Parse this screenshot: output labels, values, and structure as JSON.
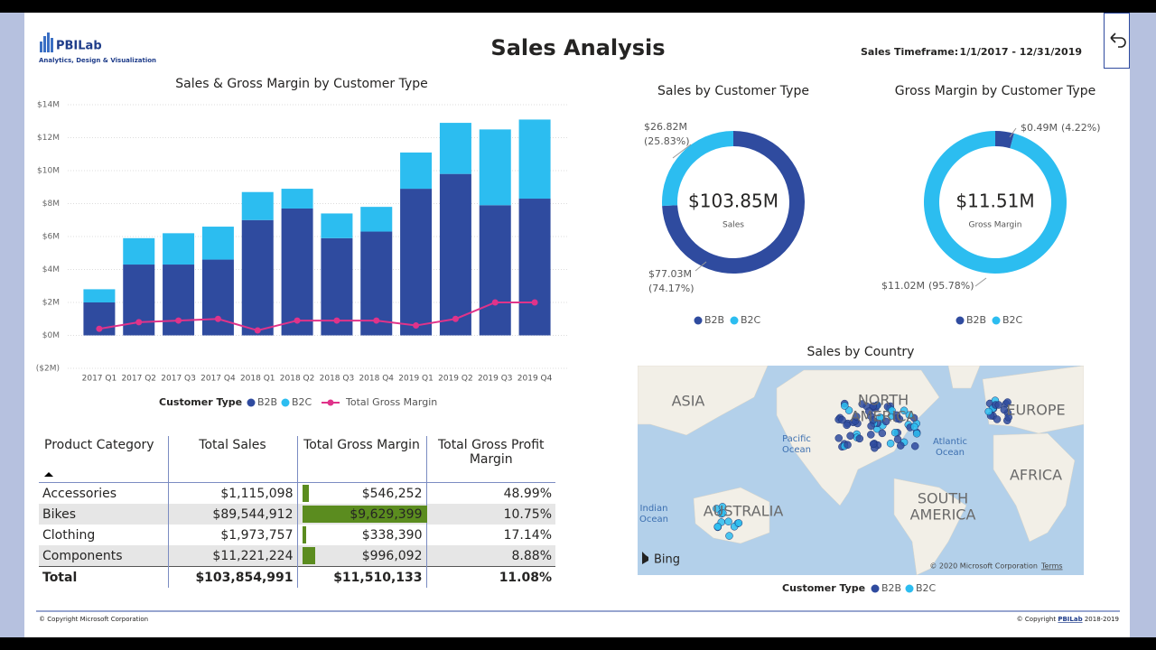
{
  "header": {
    "logo": "PBILab",
    "logo_tagline": "Analytics, Design & Visualization",
    "title": "Sales Analysis",
    "timeframe_label": "Sales Timeframe:",
    "timeframe": "1/1/2017 - 12/31/2019"
  },
  "chart_data": [
    {
      "type": "bar",
      "stacked": true,
      "title": "Sales & Gross Margin by Customer Type",
      "categories": [
        "2017 Q1",
        "2017 Q2",
        "2017 Q3",
        "2017 Q4",
        "2018 Q1",
        "2018 Q2",
        "2018 Q3",
        "2018 Q4",
        "2019 Q1",
        "2019 Q2",
        "2019 Q3",
        "2019 Q4"
      ],
      "series": [
        {
          "name": "B2B",
          "color": "#2f4b9f",
          "values": [
            2000000,
            4300000,
            4300000,
            4600000,
            7000000,
            7700000,
            5900000,
            6300000,
            8900000,
            9800000,
            7900000,
            8300000
          ]
        },
        {
          "name": "B2C",
          "color": "#2cbdf0",
          "values": [
            800000,
            1600000,
            1900000,
            2000000,
            1700000,
            1200000,
            1500000,
            1500000,
            2200000,
            3100000,
            4600000,
            4800000
          ]
        },
        {
          "name": "Total Gross Margin",
          "type": "line",
          "color": "#e0338a",
          "values": [
            400000,
            800000,
            900000,
            1000000,
            300000,
            900000,
            900000,
            900000,
            600000,
            1000000,
            2000000,
            2000000
          ]
        }
      ],
      "legend_title": "Customer Type",
      "ylim": [
        -2000000,
        14000000
      ],
      "yticks": [
        {
          "value": -2000000,
          "label": "($2M)"
        },
        {
          "value": 0,
          "label": "$0M"
        },
        {
          "value": 2000000,
          "label": "$2M"
        },
        {
          "value": 4000000,
          "label": "$4M"
        },
        {
          "value": 6000000,
          "label": "$6M"
        },
        {
          "value": 8000000,
          "label": "$8M"
        },
        {
          "value": 10000000,
          "label": "$10M"
        },
        {
          "value": 12000000,
          "label": "$12M"
        },
        {
          "value": 14000000,
          "label": "$14M"
        }
      ],
      "grid": true
    },
    {
      "type": "pie",
      "donut": true,
      "title": "Sales by Customer Type",
      "categories": [
        "B2B",
        "B2C"
      ],
      "values": [
        77030000,
        26820000
      ],
      "colors": [
        "#2f4b9f",
        "#2cbdf0"
      ],
      "value_labels": [
        "$77.03M",
        "$26.82M"
      ],
      "percent_labels": [
        "(74.17%)",
        "(25.83%)"
      ],
      "center_label": "$103.85M",
      "center_caption": "Sales"
    },
    {
      "type": "pie",
      "donut": true,
      "title": "Gross Margin by Customer Type",
      "categories": [
        "B2B",
        "B2C"
      ],
      "values": [
        490000,
        11020000
      ],
      "colors": [
        "#2f4b9f",
        "#2cbdf0"
      ],
      "value_labels": [
        "$0.49M",
        "$11.02M"
      ],
      "percent_labels": [
        "(4.22%)",
        "(95.78%)"
      ],
      "center_label": "$11.51M",
      "center_caption": "Gross Margin"
    }
  ],
  "table": {
    "columns": [
      "Product Category",
      "Total Sales",
      "Total Gross Margin",
      "Total Gross Profit Margin"
    ],
    "rows": [
      [
        "Accessories",
        "$1,115,098",
        "$546,252",
        "48.99%"
      ],
      [
        "Bikes",
        "$89,544,912",
        "$9,629,399",
        "10.75%"
      ],
      [
        "Clothing",
        "$1,973,757",
        "$338,390",
        "17.14%"
      ],
      [
        "Components",
        "$11,221,224",
        "$996,092",
        "8.88%"
      ]
    ],
    "total": [
      "Total",
      "$103,854,991",
      "$11,510,133",
      "11.08%"
    ],
    "data_bar_column": 2,
    "data_bar_color": "#5b8c1f"
  },
  "map": {
    "title": "Sales by Country",
    "labels": [
      [
        "ASIA"
      ],
      [
        "NORTH",
        "AMERICA"
      ],
      [
        "EUROPE"
      ],
      [
        "AFRICA"
      ],
      [
        "SOUTH",
        "AMERICA"
      ],
      [
        "AUSTRALIA"
      ],
      [
        "Pacific",
        "Ocean"
      ],
      [
        "Atlantic",
        "Ocean"
      ],
      [
        "Indian",
        "Ocean"
      ]
    ],
    "provider": "Bing",
    "copyright": "© 2020 Microsoft Corporation",
    "terms": "Terms",
    "legend_title": "Customer Type",
    "categories": [
      "B2B",
      "B2C"
    ],
    "colors": [
      "#2f4b9f",
      "#2cbdf0"
    ]
  },
  "footer": {
    "left": "© Copyright Microsoft Corporation",
    "right_prefix": "© Copyright",
    "right_link": "PBILab",
    "right_suffix": "2018-2019"
  }
}
